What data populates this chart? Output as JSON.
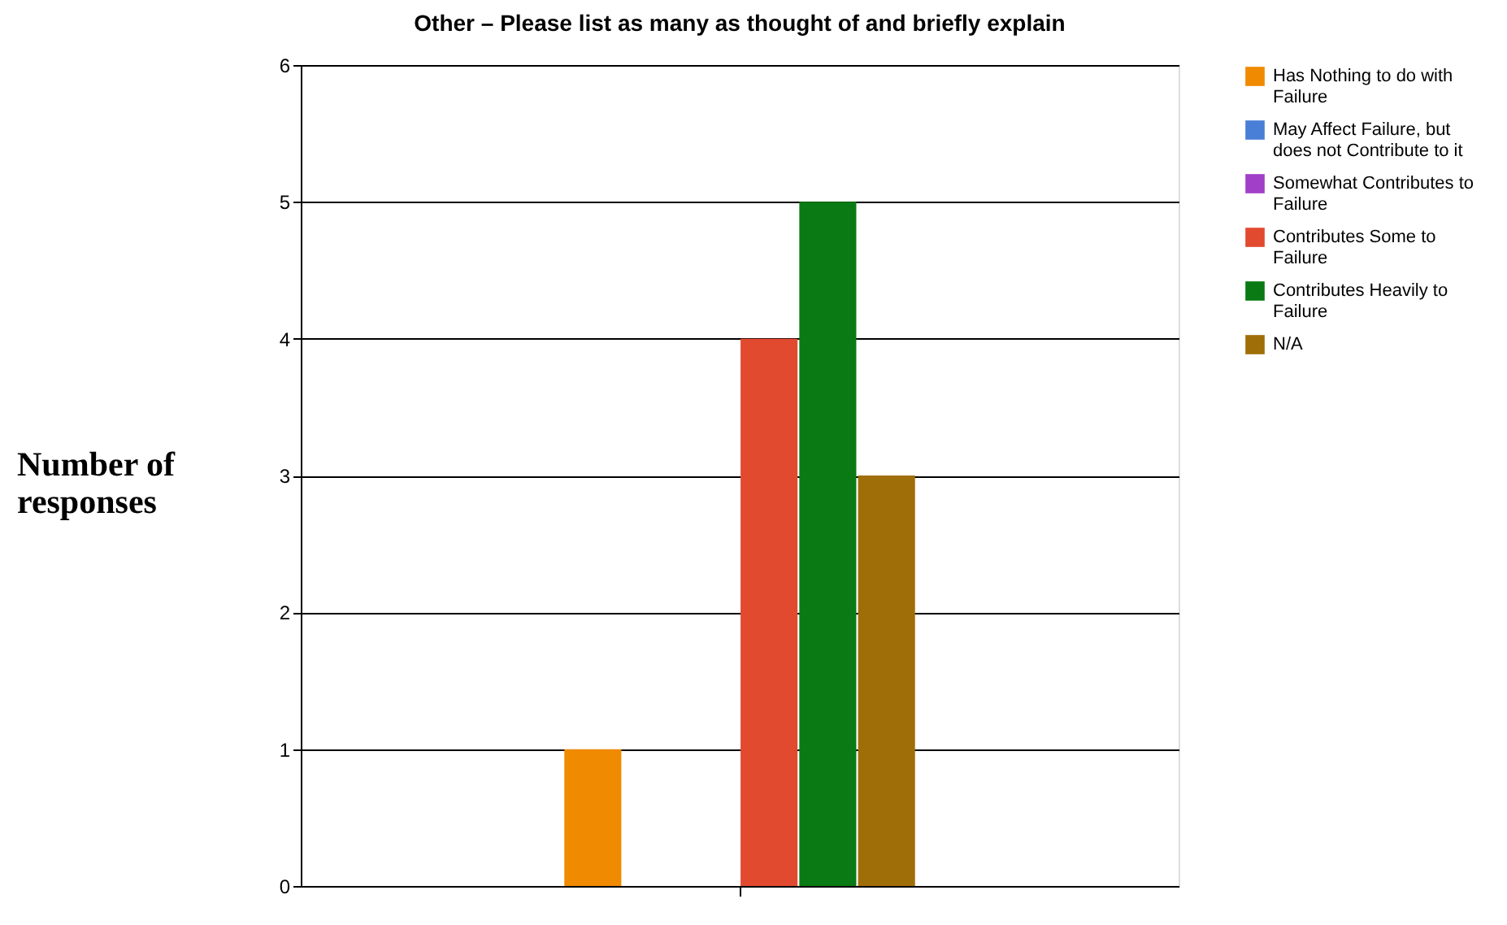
{
  "chart_data": {
    "type": "bar",
    "title": "Other – Please list as many as thought of and briefly explain",
    "ylabel": "Number of responses",
    "categories": [
      null
    ],
    "series": [
      {
        "name": "Has Nothing to do with Failure",
        "color": "#f08a00",
        "values": [
          1
        ]
      },
      {
        "name": "May Affect Failure, but does not Contribute to it",
        "color": "#4a7fd8",
        "values": [
          0
        ]
      },
      {
        "name": "Somewhat Contributes to Failure",
        "color": "#a040c8",
        "values": [
          0
        ]
      },
      {
        "name": "Contributes Some to Failure",
        "color": "#e24a30",
        "values": [
          4
        ]
      },
      {
        "name": "Contributes Heavily to Failure",
        "color": "#0a7a14",
        "values": [
          5
        ]
      },
      {
        "name": "N/A",
        "color": "#a06e08",
        "values": [
          3
        ]
      }
    ],
    "ylim": [
      0,
      6
    ],
    "yticks": [
      0,
      1,
      2,
      3,
      4,
      5,
      6
    ],
    "grid": "y",
    "legend": "right",
    "tick_labels": "y"
  }
}
